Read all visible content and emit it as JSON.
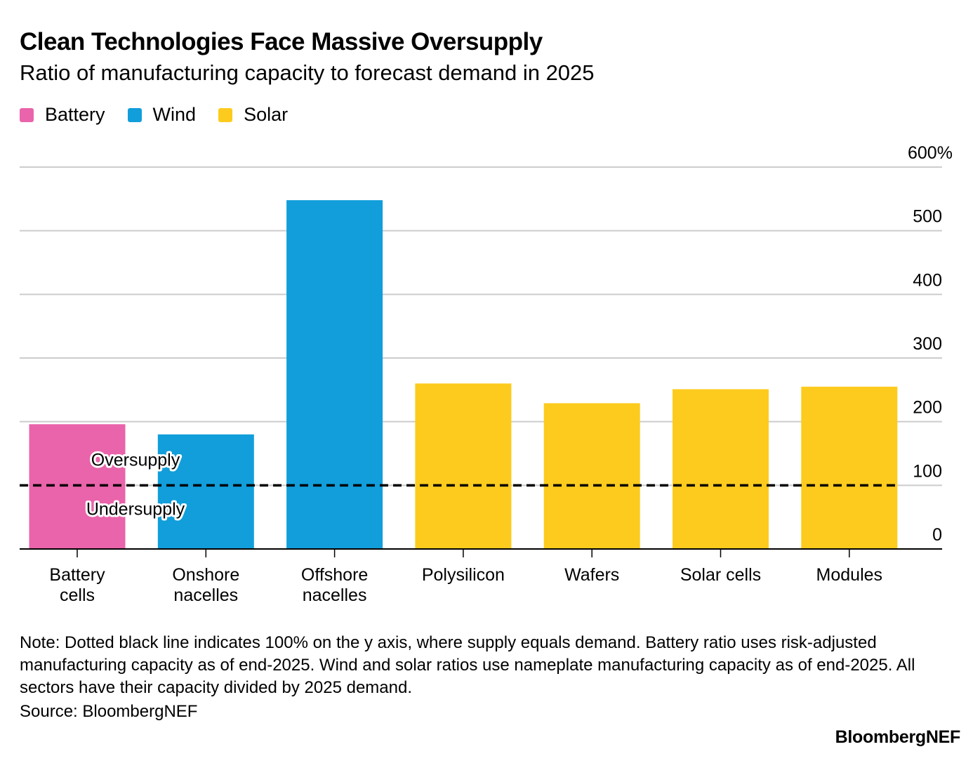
{
  "title": "Clean Technologies Face Massive Oversupply",
  "subtitle": "Ratio of manufacturing capacity to forecast demand in 2025",
  "legend": [
    {
      "label": "Battery",
      "color": "#e964aa"
    },
    {
      "label": "Wind",
      "color": "#119edb"
    },
    {
      "label": "Solar",
      "color": "#fdcb1e"
    }
  ],
  "note": "Note: Dotted black line indicates 100% on the y axis, where supply equals demand. Battery ratio uses risk-adjusted manufacturing capacity as of end-2025. Wind and solar ratios use nameplate manufacturing capacity as of end-2025. All sectors have their capacity divided by 2025 demand.",
  "source": "Source: BloombergNEF",
  "brand": "BloombergNEF",
  "chart_data": {
    "type": "bar",
    "title": "Clean Technologies Face Massive Oversupply",
    "subtitle": "Ratio of manufacturing capacity to forecast demand in 2025",
    "categories": [
      [
        "Battery",
        "cells"
      ],
      [
        "Onshore",
        "nacelles"
      ],
      [
        "Offshore",
        "nacelles"
      ],
      [
        "Polysilicon"
      ],
      [
        "Wafers"
      ],
      [
        "Solar cells"
      ],
      [
        "Modules"
      ]
    ],
    "values": [
      196,
      180,
      548,
      260,
      229,
      251,
      255
    ],
    "groups": [
      "Battery",
      "Wind",
      "Wind",
      "Solar",
      "Solar",
      "Solar",
      "Solar"
    ],
    "colors": {
      "Battery": "#e964aa",
      "Wind": "#119edb",
      "Solar": "#fdcb1e"
    },
    "ylim": [
      0,
      600
    ],
    "yticks": [
      0,
      100,
      200,
      300,
      400,
      500,
      600
    ],
    "ytick_labels": [
      "0",
      "100",
      "200",
      "300",
      "400",
      "500",
      "600%"
    ],
    "y_axis_position": "right",
    "grid": true,
    "reference_line": {
      "value": 100,
      "style": "dashed",
      "color": "#000000"
    },
    "annotations": [
      {
        "text": "Oversupply",
        "anchor_value": 100,
        "side": "above"
      },
      {
        "text": "Undersupply",
        "anchor_value": 100,
        "side": "below"
      }
    ]
  }
}
